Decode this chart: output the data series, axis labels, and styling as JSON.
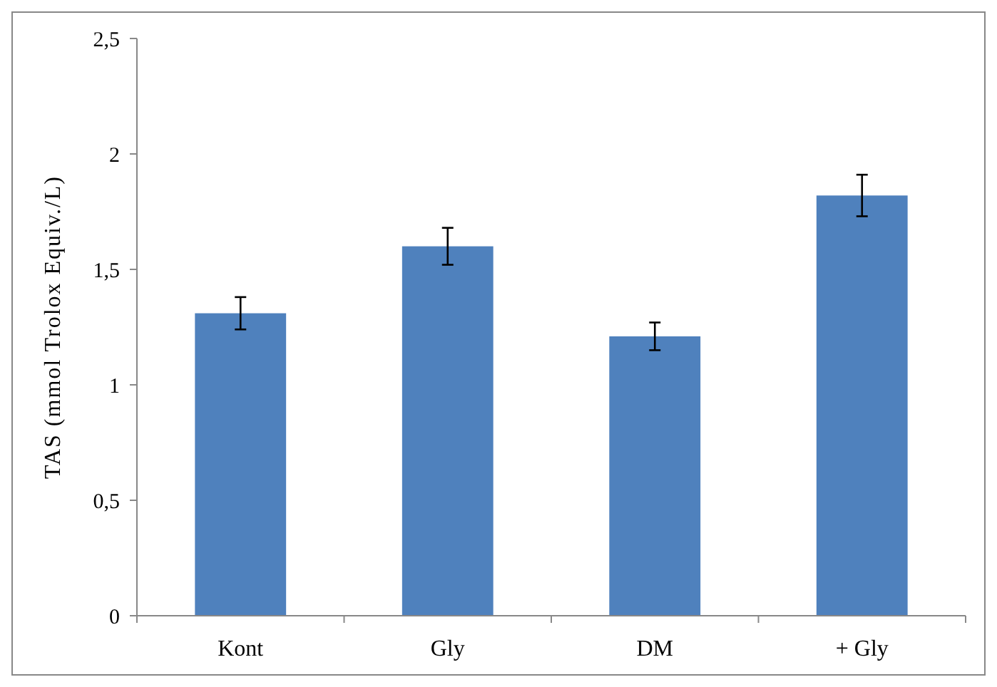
{
  "chart_data": {
    "type": "bar",
    "ylabel": "TAS (mmol Trolox Equiv./L)",
    "categories": [
      "Kont",
      "Gly",
      "DM",
      "+ Gly"
    ],
    "values": [
      1.31,
      1.6,
      1.21,
      1.82
    ],
    "errors": [
      0.07,
      0.08,
      0.06,
      0.09
    ],
    "color": "#4f81bd",
    "ylim": [
      0,
      2.5
    ],
    "yticks": [
      {
        "value": 0,
        "label": "0"
      },
      {
        "value": 0.5,
        "label": "0,5"
      },
      {
        "value": 1,
        "label": "1"
      },
      {
        "value": 1.5,
        "label": "1,5"
      },
      {
        "value": 2,
        "label": "2"
      },
      {
        "value": 2.5,
        "label": "2,5"
      }
    ],
    "grid": false
  }
}
